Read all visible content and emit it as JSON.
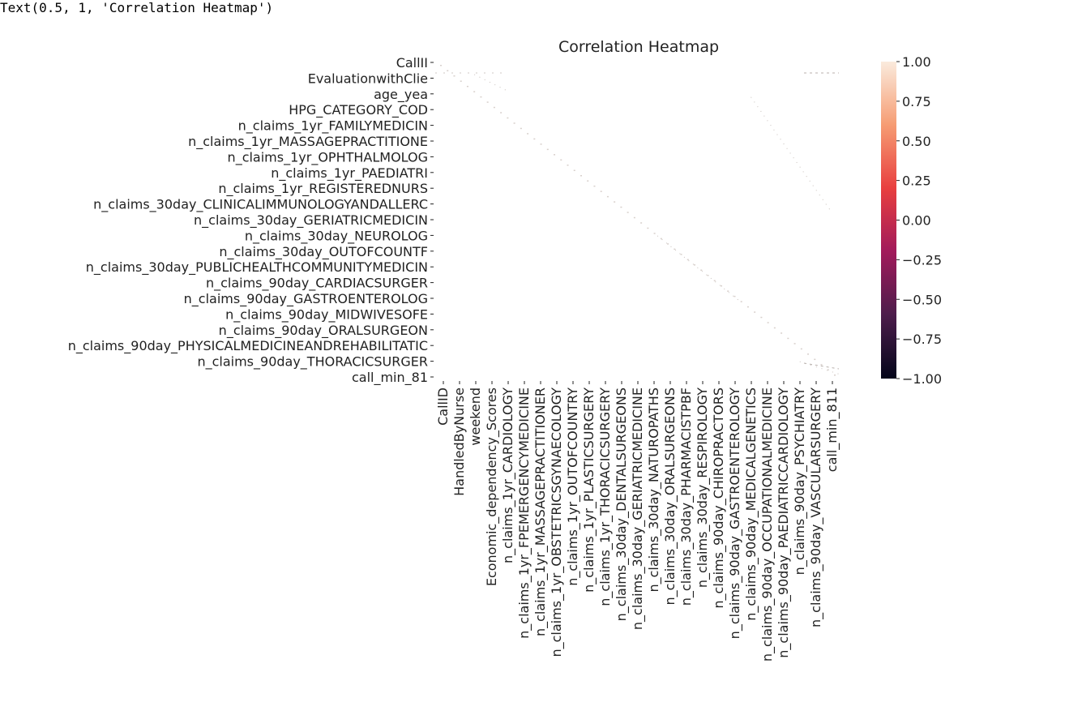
{
  "output_text": "Text(0.5, 1, 'Correlation Heatmap')",
  "chart_data": {
    "type": "heatmap",
    "title": "Correlation Heatmap",
    "xlabel": "",
    "ylabel": "",
    "y_tick_labels": [
      "CallII",
      "EvaluationwithClie",
      "age_yea",
      "HPG_CATEGORY_COD",
      "n_claims_1yr_FAMILYMEDICIN",
      "n_claims_1yr_MASSAGEPRACTITIONE",
      "n_claims_1yr_OPHTHALMOLOG",
      "n_claims_1yr_PAEDIATRI",
      "n_claims_1yr_REGISTEREDNURS",
      "n_claims_30day_CLINICALIMMUNOLOGYANDALLERC",
      "n_claims_30day_GERIATRICMEDICIN",
      "n_claims_30day_NEUROLOG",
      "n_claims_30day_OUTOFCOUNTF",
      "n_claims_30day_PUBLICHEALTHCOMMUNITYMEDICIN",
      "n_claims_90day_CARDIACSURGER",
      "n_claims_90day_GASTROENTEROLOG",
      "n_claims_90day_MIDWIVESOFE",
      "n_claims_90day_ORALSURGEON",
      "n_claims_90day_PHYSICALMEDICINEANDREHABILITATIC",
      "n_claims_90day_THORACICSURGER",
      "call_min_81"
    ],
    "x_tick_labels": [
      "CallID",
      "HandledByNurse",
      "weekend",
      "Economic_dependency_Scores",
      "n_claims_1yr_CARDIOLOGY",
      "n_claims_1yr_FPEMERGENCYMEDICINE",
      "n_claims_1yr_MASSAGEPRACTITIONER",
      "n_claims_1yr_OBSTETRICSGYNAECOLOGY",
      "n_claims_1yr_OUTOFCOUNTRY",
      "n_claims_1yr_PLASTICSURGERY",
      "n_claims_1yr_THORACICSURGERY",
      "n_claims_30day_DENTALSURGEONS",
      "n_claims_30day_GERIATRICMEDICINE",
      "n_claims_30day_NATUROPATHS",
      "n_claims_30day_ORALSURGEONS",
      "n_claims_30day_PHARMACISTPBF",
      "n_claims_30day_RESPIROLOGY",
      "n_claims_90day_CHIROPRACTORS",
      "n_claims_90day_GASTROENTEROLOGY",
      "n_claims_90day_MEDICALGENETICS",
      "n_claims_90day_OCCUPATIONALMEDICINE",
      "n_claims_90day_PAEDIATRICCARDIOLOGY",
      "n_claims_90day_PSYCHIATRY",
      "n_claims_90day_VASCULARSURGERY",
      "call_min_811"
    ],
    "colorbar": {
      "range": [
        -1.0,
        1.0
      ],
      "ticks": [
        "1.00",
        "0.75",
        "0.50",
        "0.25",
        "0.00",
        "−0.25",
        "−0.50",
        "−0.75",
        "−1.00"
      ],
      "tick_values": [
        1.0,
        0.75,
        0.5,
        0.25,
        0.0,
        -0.25,
        -0.5,
        -0.75,
        -1.0
      ],
      "colormap_stops": [
        "#03051a",
        "#4c1d4b",
        "#a11a5b",
        "#e83f3f",
        "#f69c73",
        "#faebdd"
      ]
    },
    "diagonal_value": 1.0,
    "off_diagonal_typical": 0.0,
    "grid": false
  }
}
